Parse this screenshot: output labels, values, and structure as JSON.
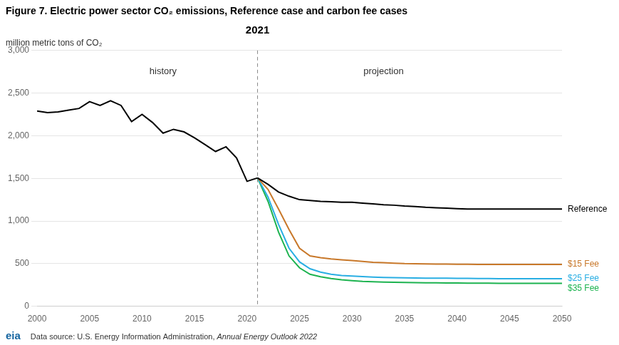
{
  "chart_data": {
    "type": "line",
    "title": "Figure 7. Electric power sector CO₂ emissions, Reference case and carbon fee cases",
    "y_label": "million metric tons of CO₂",
    "annotations": [
      {
        "text": "history",
        "x": 2012,
        "y": 2750
      },
      {
        "text": "projection",
        "x": 2033,
        "y": 2750
      }
    ],
    "divider": {
      "x": 2021,
      "label": "2021"
    },
    "footer": "Data source: U.S. Energy Information Administration, ",
    "footer_italic": "Annual Energy Outlook 2022",
    "logo": {
      "text": "eia",
      "color": "#1565a0"
    },
    "xlim": [
      2000,
      2050
    ],
    "xticks": [
      2000,
      2005,
      2010,
      2015,
      2020,
      2025,
      2030,
      2035,
      2040,
      2045,
      2050
    ],
    "ylim": [
      0,
      3000
    ],
    "yticks": [
      0,
      500,
      {
        "value": 1000,
        "label": "1,000"
      },
      {
        "value": 1500,
        "label": "1,500"
      },
      {
        "value": 2000,
        "label": "2,000"
      },
      {
        "value": 2500,
        "label": "2,500"
      },
      {
        "value": 3000,
        "label": "3,000"
      }
    ],
    "grid": "y",
    "series": [
      {
        "color": "#000000",
        "x": [
          2000,
          2001,
          2002,
          2003,
          2004,
          2005,
          2006,
          2007,
          2008,
          2009,
          2010,
          2011,
          2012,
          2013,
          2014,
          2015,
          2016,
          2017,
          2018,
          2019,
          2020,
          2021
        ],
        "values": [
          2290,
          2270,
          2280,
          2300,
          2320,
          2400,
          2355,
          2410,
          2355,
          2165,
          2250,
          2155,
          2030,
          2075,
          2045,
          1975,
          1895,
          1815,
          1870,
          1740,
          1465,
          1505
        ]
      },
      {
        "name": "Reference",
        "color": "#000000",
        "x": [
          2021,
          2022,
          2023,
          2024,
          2025,
          2026,
          2027,
          2028,
          2029,
          2030,
          2031,
          2032,
          2033,
          2034,
          2035,
          2036,
          2037,
          2038,
          2039,
          2040,
          2041,
          2042,
          2043,
          2044,
          2045,
          2046,
          2047,
          2048,
          2049,
          2050
        ],
        "values": [
          1505,
          1430,
          1340,
          1290,
          1250,
          1240,
          1230,
          1225,
          1220,
          1220,
          1210,
          1200,
          1190,
          1185,
          1175,
          1170,
          1160,
          1155,
          1150,
          1145,
          1140,
          1140,
          1140,
          1140,
          1140,
          1140,
          1140,
          1140,
          1140,
          1140
        ]
      },
      {
        "name": "$15 Fee",
        "color": "#c8782a",
        "x": [
          2021,
          2022,
          2023,
          2024,
          2025,
          2026,
          2027,
          2028,
          2029,
          2030,
          2031,
          2032,
          2033,
          2034,
          2035,
          2036,
          2037,
          2038,
          2039,
          2040,
          2041,
          2042,
          2043,
          2044,
          2045,
          2046,
          2047,
          2048,
          2049,
          2050
        ],
        "values": [
          1505,
          1370,
          1140,
          900,
          680,
          590,
          570,
          555,
          545,
          535,
          525,
          515,
          510,
          505,
          500,
          498,
          496,
          495,
          494,
          493,
          492,
          491,
          490,
          490,
          490,
          490,
          490,
          490,
          490,
          490
        ]
      },
      {
        "name": "$25 Fee",
        "color": "#29aee3",
        "x": [
          2021,
          2022,
          2023,
          2024,
          2025,
          2026,
          2027,
          2028,
          2029,
          2030,
          2031,
          2032,
          2033,
          2034,
          2035,
          2036,
          2037,
          2038,
          2039,
          2040,
          2041,
          2042,
          2043,
          2044,
          2045,
          2046,
          2047,
          2048,
          2049,
          2050
        ],
        "values": [
          1505,
          1280,
          960,
          680,
          520,
          440,
          400,
          375,
          360,
          355,
          348,
          342,
          338,
          335,
          333,
          331,
          330,
          329,
          328,
          327,
          326,
          325,
          324,
          323,
          322,
          322,
          322,
          322,
          322,
          322
        ]
      },
      {
        "name": "$35 Fee",
        "color": "#1db350",
        "x": [
          2021,
          2022,
          2023,
          2024,
          2025,
          2026,
          2027,
          2028,
          2029,
          2030,
          2031,
          2032,
          2033,
          2034,
          2035,
          2036,
          2037,
          2038,
          2039,
          2040,
          2041,
          2042,
          2043,
          2044,
          2045,
          2046,
          2047,
          2048,
          2049,
          2050
        ],
        "values": [
          1505,
          1230,
          870,
          590,
          450,
          375,
          345,
          325,
          310,
          300,
          292,
          287,
          283,
          280,
          278,
          276,
          275,
          274,
          273,
          272,
          271,
          270,
          270,
          269,
          268,
          268,
          268,
          268,
          268,
          268
        ]
      }
    ]
  }
}
